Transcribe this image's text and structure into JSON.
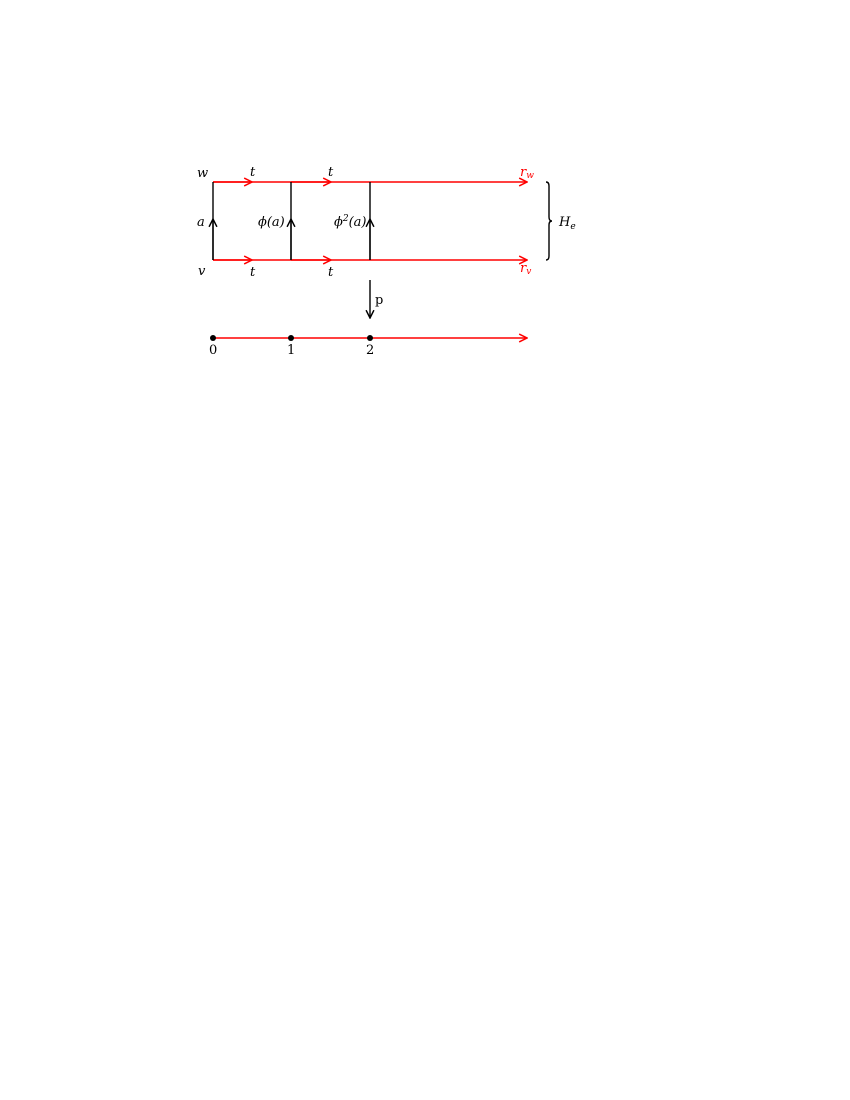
{
  "labels": {
    "w": "w",
    "v": "v",
    "a": "a",
    "phi_a": "ϕ(a)",
    "phi2_a_base": "ϕ",
    "phi2_a_exp": "2",
    "phi2_a_arg": "(a)",
    "t": "t",
    "r": "r",
    "r_w_sub": "w",
    "r_v_sub": "v",
    "H": "H",
    "H_sub": "e",
    "p": "p",
    "ticks": [
      "0",
      "1",
      "2"
    ]
  },
  "colors": {
    "highlight": "#ff0000",
    "ink": "#000000"
  }
}
